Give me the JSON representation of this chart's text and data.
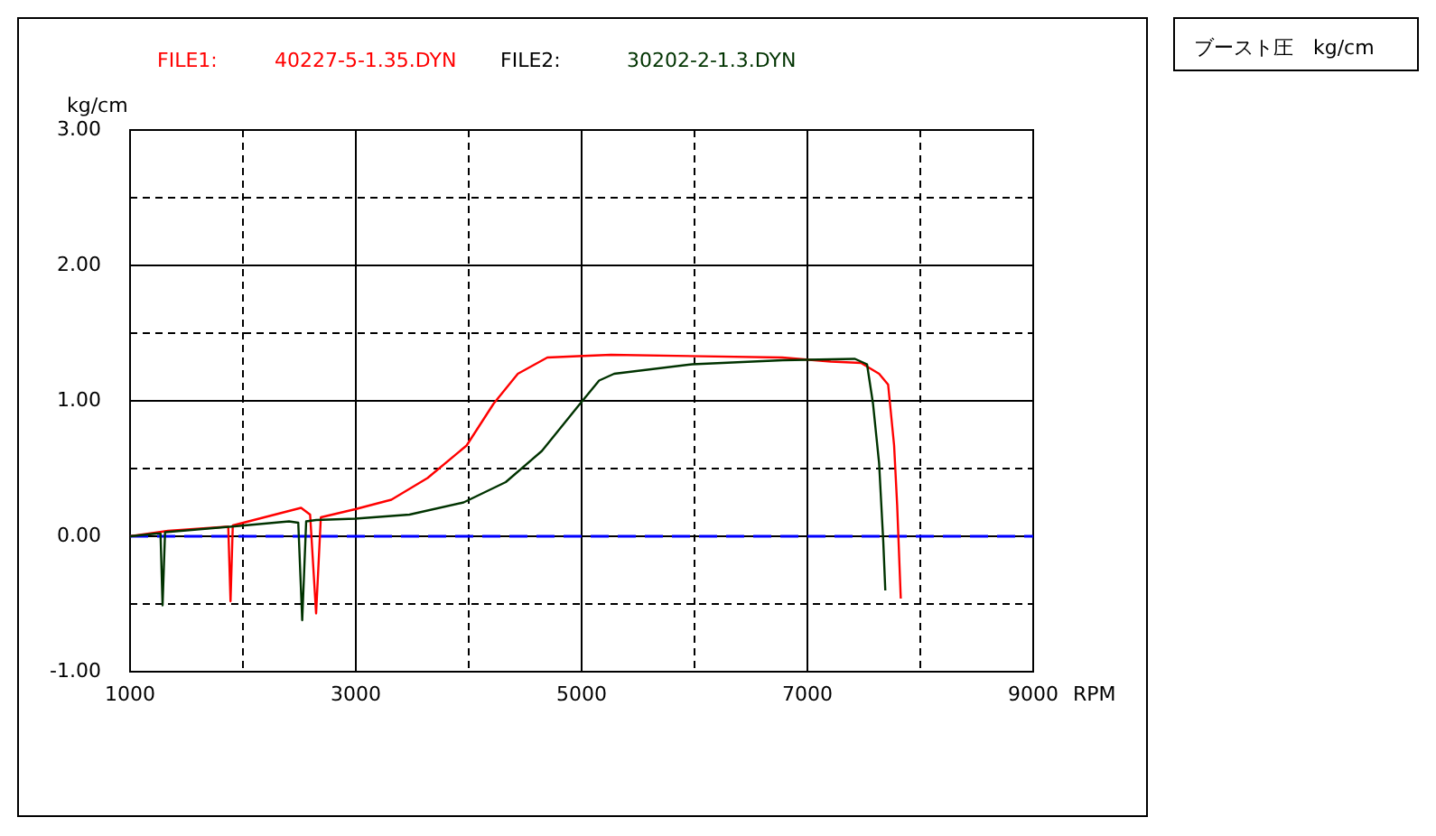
{
  "chart_data": {
    "type": "line",
    "title": "ブースト圧　kg/cm",
    "xlabel": "RPM",
    "ylabel": "kg/cm",
    "annotations": [
      "FILE1:",
      "FILE2:"
    ],
    "xlim": [
      1000,
      9000
    ],
    "ylim": [
      -1,
      3
    ],
    "xticks": [
      1000,
      {
        "value": 2000,
        "label": null
      },
      3000,
      {
        "value": 4000,
        "label": null
      },
      5000,
      {
        "value": 6000,
        "label": null
      },
      7000,
      {
        "value": 8000,
        "label": null
      },
      9000
    ],
    "yticks": [
      {
        "value": -1,
        "label": "-1.00"
      },
      {
        "value": -0.5,
        "label": null
      },
      {
        "value": 0,
        "label": "0.00"
      },
      {
        "value": 0.5,
        "label": null
      },
      {
        "value": 1,
        "label": "1.00"
      },
      {
        "value": 1.5,
        "label": null
      },
      {
        "value": 2,
        "label": "2.00"
      },
      {
        "value": 2.5,
        "label": null
      },
      {
        "value": 3,
        "label": "3.00"
      }
    ],
    "grid": true,
    "legend": "top left",
    "ref_lines": [
      {
        "axis": "y",
        "value": 0,
        "color": "#0000ff",
        "line_style": "dashed"
      }
    ],
    "series": [
      {
        "name": "40227-5-1.35.DYN",
        "color": "#ff0000",
        "x": [
          1000,
          1336,
          1848,
          1870,
          1890,
          1910,
          2515,
          2595,
          2648,
          2690,
          2995,
          3315,
          3635,
          3981,
          4221,
          4435,
          4696,
          4968,
          5260,
          6776,
          7208,
          7475,
          7635,
          7715,
          7768,
          7795,
          7827
        ],
        "values": [
          0,
          0.04,
          0.07,
          0.07,
          -0.48,
          0.08,
          0.21,
          0.16,
          -0.57,
          0.14,
          0.2,
          0.27,
          0.43,
          0.67,
          0.98,
          1.2,
          1.32,
          1.33,
          1.34,
          1.32,
          1.29,
          1.28,
          1.2,
          1.12,
          0.67,
          0.23,
          -0.46
        ]
      },
      {
        "name": "30202-2-1.3.DYN",
        "color": "#003300",
        "x": [
          1000,
          1235,
          1270,
          1288,
          1310,
          1875,
          2408,
          2490,
          2525,
          2560,
          2648,
          2995,
          3475,
          3955,
          4328,
          4648,
          4968,
          5155,
          5288,
          5981,
          6781,
          7421,
          7528,
          7581,
          7635,
          7672,
          7690
        ],
        "values": [
          0,
          0.02,
          0.02,
          -0.51,
          0.03,
          0.07,
          0.11,
          0.1,
          -0.62,
          0.11,
          0.12,
          0.13,
          0.16,
          0.25,
          0.4,
          0.63,
          0.96,
          1.15,
          1.2,
          1.27,
          1.3,
          1.31,
          1.27,
          0.98,
          0.54,
          -0.04,
          -0.4
        ]
      }
    ]
  }
}
